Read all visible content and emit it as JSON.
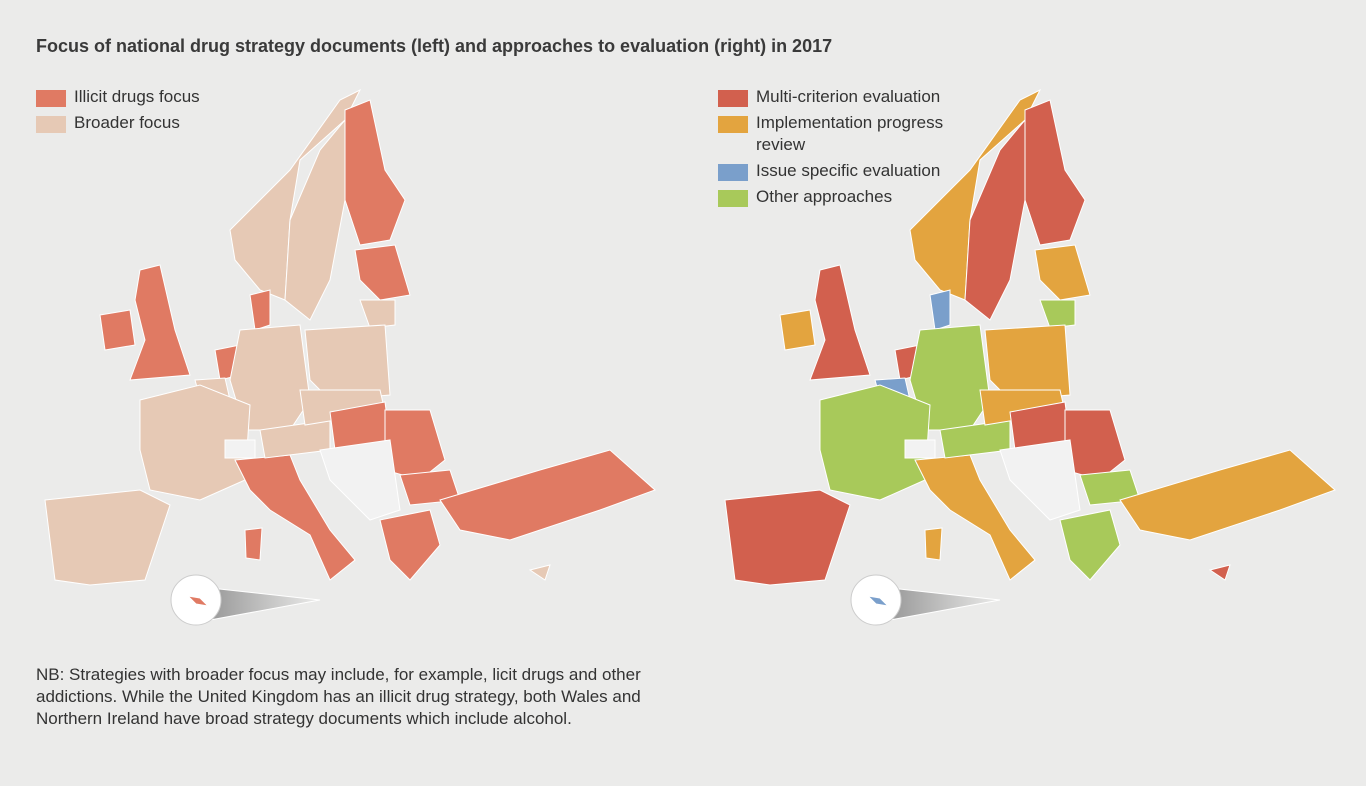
{
  "title": "Focus of national drug strategy documents (left) and approaches to evaluation (right) in 2017",
  "left_map": {
    "legend": [
      {
        "label": "Illicit drugs focus",
        "color": "#e07a63"
      },
      {
        "label": "Broader focus",
        "color": "#e6c9b5"
      }
    ]
  },
  "right_map": {
    "legend": [
      {
        "label": "Multi-criterion evaluation",
        "color": "#d2604e"
      },
      {
        "label": "Implementation progress review",
        "color": "#e3a43f"
      },
      {
        "label": "Issue specific evaluation",
        "color": "#7a9fcb"
      },
      {
        "label": "Other approaches",
        "color": "#a8c95a"
      }
    ]
  },
  "note": "NB:  Strategies with broader focus may include, for example, licit drugs and other addictions. While the United Kingdom has an illicit drug strategy, both Wales and Northern Ireland have broad strategy documents which include alcohol."
}
